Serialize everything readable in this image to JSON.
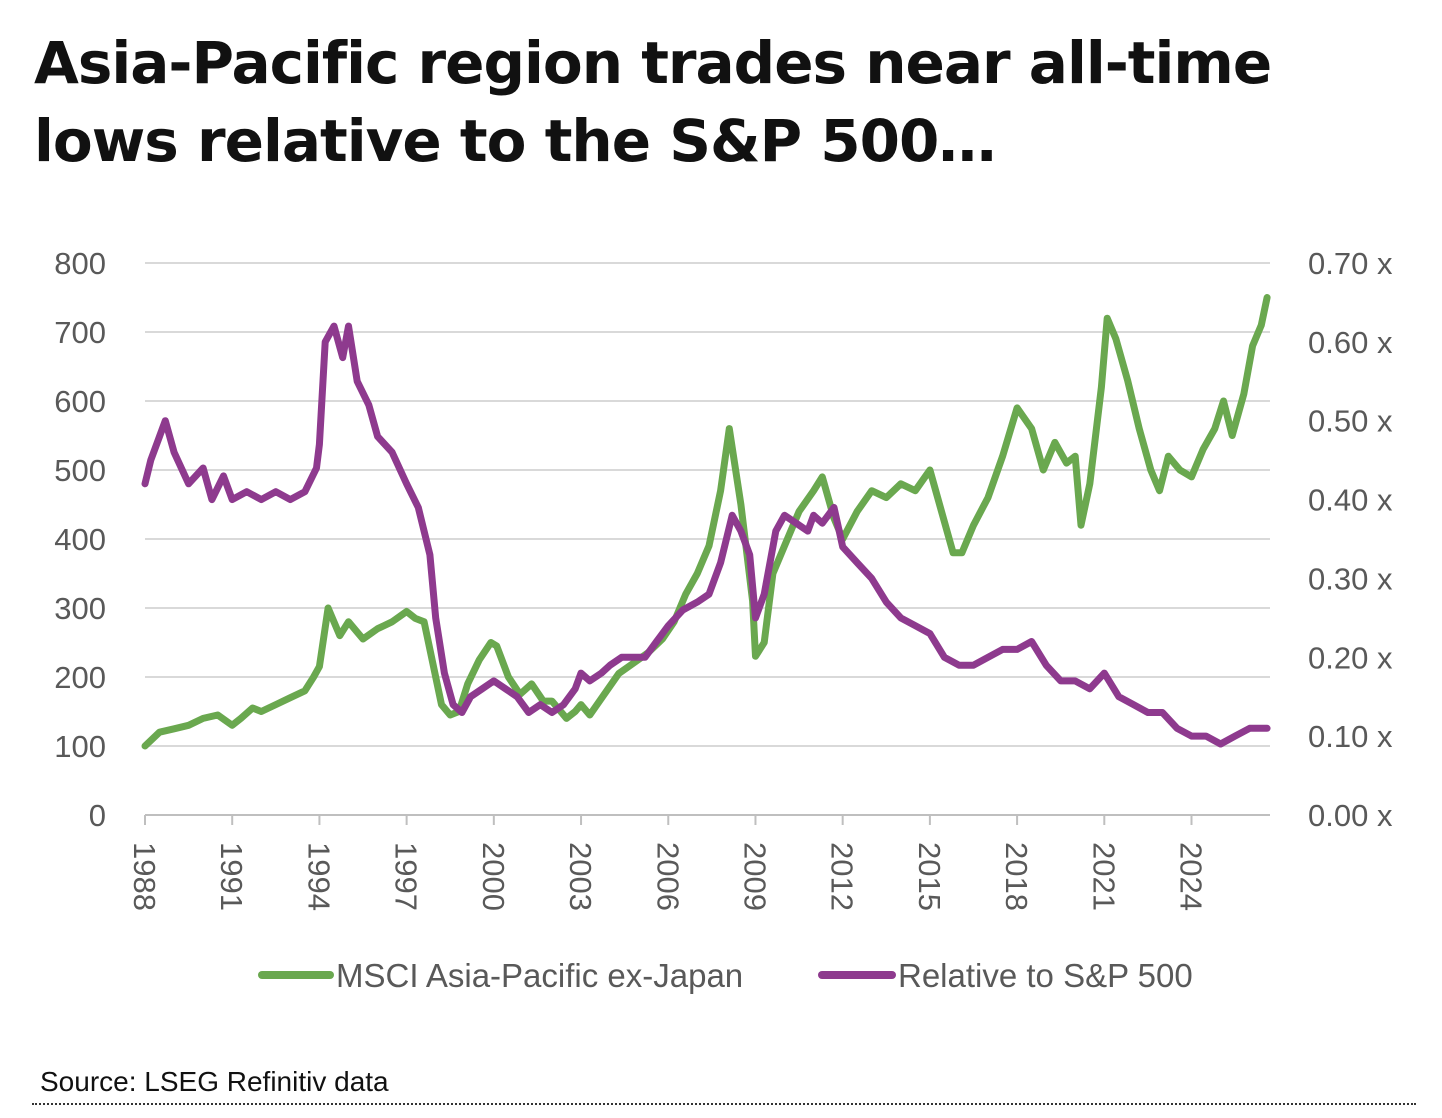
{
  "header": {
    "title_line1": "Asia-Pacific region trades near all-time",
    "title_line2": "lows relative to the S&P 500…"
  },
  "source": "Source: LSEG Refinitiv data",
  "chart_data": {
    "type": "line",
    "title": "Asia-Pacific region trades near all-time lows relative to the S&P 500…",
    "x_range": [
      1988,
      2026.7
    ],
    "x_ticks": [
      "1988",
      "1991",
      "1994",
      "1997",
      "2000",
      "2003",
      "2006",
      "2009",
      "2012",
      "2015",
      "2018",
      "2021",
      "2024"
    ],
    "y_left": {
      "range": [
        0,
        800
      ],
      "ticks": [
        "0",
        "100",
        "200",
        "300",
        "400",
        "500",
        "600",
        "700",
        "800"
      ]
    },
    "y_right": {
      "range": [
        0,
        0.7
      ],
      "ticks": [
        "0.00 x",
        "0.10 x",
        "0.20 x",
        "0.30 x",
        "0.40 x",
        "0.50 x",
        "0.60 x",
        "0.70 x"
      ]
    },
    "grid": true,
    "legend_position": "bottom",
    "colors": {
      "msci": "#6aa84f",
      "relative": "#8e3a8e",
      "grid": "#d9d9d9",
      "axis": "#bfbfbf",
      "tick_text": "#595959"
    },
    "series": [
      {
        "name": "MSCI Asia-Pacific ex-Japan",
        "axis": "left",
        "x": [
          1988.0,
          1988.5,
          1989.0,
          1989.5,
          1990.0,
          1990.5,
          1991.0,
          1991.3,
          1991.7,
          1992.0,
          1992.5,
          1993.0,
          1993.5,
          1993.8,
          1994.0,
          1994.3,
          1994.7,
          1995.0,
          1995.5,
          1996.0,
          1996.5,
          1997.0,
          1997.3,
          1997.6,
          1997.9,
          1998.2,
          1998.5,
          1998.8,
          1999.1,
          1999.5,
          1999.9,
          2000.1,
          2000.5,
          2000.9,
          2001.3,
          2001.7,
          2002.0,
          2002.5,
          2002.8,
          2003.0,
          2003.3,
          2003.8,
          2004.3,
          2004.8,
          2005.3,
          2005.8,
          2006.2,
          2006.6,
          2007.0,
          2007.4,
          2007.8,
          2008.1,
          2008.5,
          2008.9,
          2009.0,
          2009.3,
          2009.6,
          2010.0,
          2010.5,
          2011.0,
          2011.3,
          2011.7,
          2012.0,
          2012.5,
          2013.0,
          2013.5,
          2014.0,
          2014.5,
          2015.0,
          2015.4,
          2015.8,
          2016.1,
          2016.5,
          2017.0,
          2017.5,
          2018.0,
          2018.5,
          2018.9,
          2019.3,
          2019.7,
          2020.0,
          2020.2,
          2020.5,
          2020.9,
          2021.1,
          2021.4,
          2021.8,
          2022.2,
          2022.6,
          2022.9,
          2023.2,
          2023.6,
          2024.0,
          2024.4,
          2024.8,
          2025.1,
          2025.4,
          2025.8,
          2026.1,
          2026.4,
          2026.6
        ],
        "y": [
          100,
          120,
          125,
          130,
          140,
          145,
          130,
          140,
          155,
          150,
          160,
          170,
          180,
          200,
          215,
          300,
          260,
          280,
          255,
          270,
          280,
          295,
          285,
          280,
          220,
          160,
          145,
          150,
          190,
          225,
          250,
          245,
          200,
          175,
          190,
          165,
          165,
          140,
          150,
          160,
          145,
          175,
          205,
          220,
          235,
          255,
          280,
          320,
          350,
          390,
          470,
          560,
          450,
          310,
          230,
          250,
          350,
          390,
          440,
          470,
          490,
          430,
          400,
          440,
          470,
          460,
          480,
          470,
          500,
          440,
          380,
          380,
          420,
          460,
          520,
          590,
          560,
          500,
          540,
          510,
          520,
          420,
          480,
          620,
          720,
          690,
          630,
          560,
          500,
          470,
          520,
          500,
          490,
          530,
          560,
          600,
          550,
          610,
          680,
          710,
          750
        ]
      },
      {
        "name": "Relative to S&P 500",
        "axis": "right",
        "x": [
          1988.0,
          1988.2,
          1988.5,
          1988.7,
          1989.0,
          1989.5,
          1990.0,
          1990.3,
          1990.7,
          1991.0,
          1991.5,
          1992.0,
          1992.5,
          1993.0,
          1993.5,
          1993.9,
          1994.0,
          1994.2,
          1994.5,
          1994.8,
          1995.0,
          1995.3,
          1995.7,
          1996.0,
          1996.5,
          1997.0,
          1997.4,
          1997.8,
          1998.0,
          1998.3,
          1998.6,
          1998.9,
          1999.2,
          1999.6,
          2000.0,
          2000.4,
          2000.8,
          2001.2,
          2001.6,
          2002.0,
          2002.4,
          2002.8,
          2003.0,
          2003.3,
          2003.7,
          2004.0,
          2004.4,
          2004.8,
          2005.2,
          2005.6,
          2006.0,
          2006.5,
          2007.0,
          2007.4,
          2007.8,
          2008.2,
          2008.5,
          2008.8,
          2009.0,
          2009.3,
          2009.7,
          2010.0,
          2010.4,
          2010.8,
          2011.0,
          2011.3,
          2011.7,
          2012.0,
          2012.5,
          2013.0,
          2013.5,
          2014.0,
          2014.5,
          2015.0,
          2015.5,
          2016.0,
          2016.5,
          2017.0,
          2017.5,
          2018.0,
          2018.5,
          2019.0,
          2019.5,
          2020.0,
          2020.5,
          2021.0,
          2021.5,
          2022.0,
          2022.5,
          2023.0,
          2023.5,
          2024.0,
          2024.5,
          2025.0,
          2025.5,
          2026.0,
          2026.6
        ],
        "y": [
          0.42,
          0.45,
          0.48,
          0.5,
          0.46,
          0.42,
          0.44,
          0.4,
          0.43,
          0.4,
          0.41,
          0.4,
          0.41,
          0.4,
          0.41,
          0.44,
          0.47,
          0.6,
          0.62,
          0.58,
          0.62,
          0.55,
          0.52,
          0.48,
          0.46,
          0.42,
          0.39,
          0.33,
          0.25,
          0.18,
          0.14,
          0.13,
          0.15,
          0.16,
          0.17,
          0.16,
          0.15,
          0.13,
          0.14,
          0.13,
          0.14,
          0.16,
          0.18,
          0.17,
          0.18,
          0.19,
          0.2,
          0.2,
          0.2,
          0.22,
          0.24,
          0.26,
          0.27,
          0.28,
          0.32,
          0.38,
          0.36,
          0.33,
          0.25,
          0.28,
          0.36,
          0.38,
          0.37,
          0.36,
          0.38,
          0.37,
          0.39,
          0.34,
          0.32,
          0.3,
          0.27,
          0.25,
          0.24,
          0.23,
          0.2,
          0.19,
          0.19,
          0.2,
          0.21,
          0.21,
          0.22,
          0.19,
          0.17,
          0.17,
          0.16,
          0.18,
          0.15,
          0.14,
          0.13,
          0.13,
          0.11,
          0.1,
          0.1,
          0.09,
          0.1,
          0.11,
          0.11
        ]
      }
    ]
  }
}
